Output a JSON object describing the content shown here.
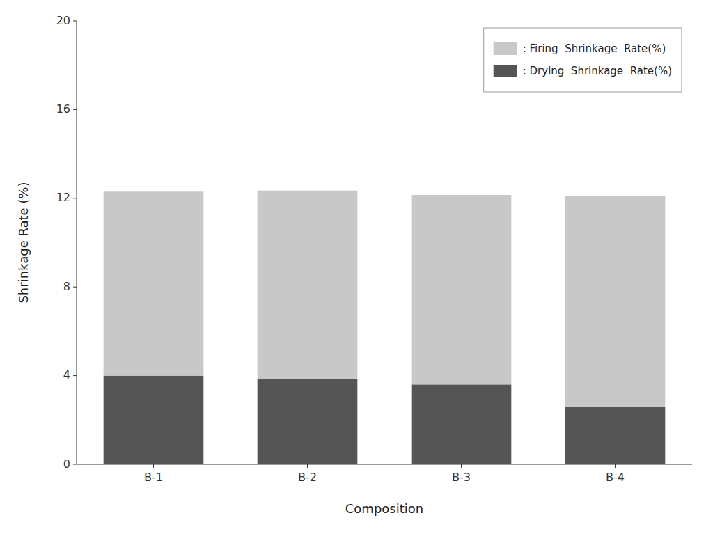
{
  "chart_data": {
    "type": "bar",
    "stacked": true,
    "categories": [
      "B-1",
      "B-2",
      "B-3",
      "B-4"
    ],
    "series": [
      {
        "name": ": Drying  Shrinkage  Rate(%)",
        "color": "#555555",
        "values": [
          4.0,
          3.85,
          3.6,
          2.6
        ]
      },
      {
        "name": ": Firing  Shrinkage  Rate(%)",
        "color": "#c8c8c8",
        "values": [
          8.3,
          8.5,
          8.55,
          9.5
        ]
      }
    ],
    "xlabel": "Composition",
    "ylabel": "Shrinkage Rate (%)",
    "ylim": [
      0,
      20
    ],
    "yticks": [
      0,
      4,
      8,
      12,
      16,
      20
    ],
    "grid": false,
    "legend": "upper right"
  }
}
